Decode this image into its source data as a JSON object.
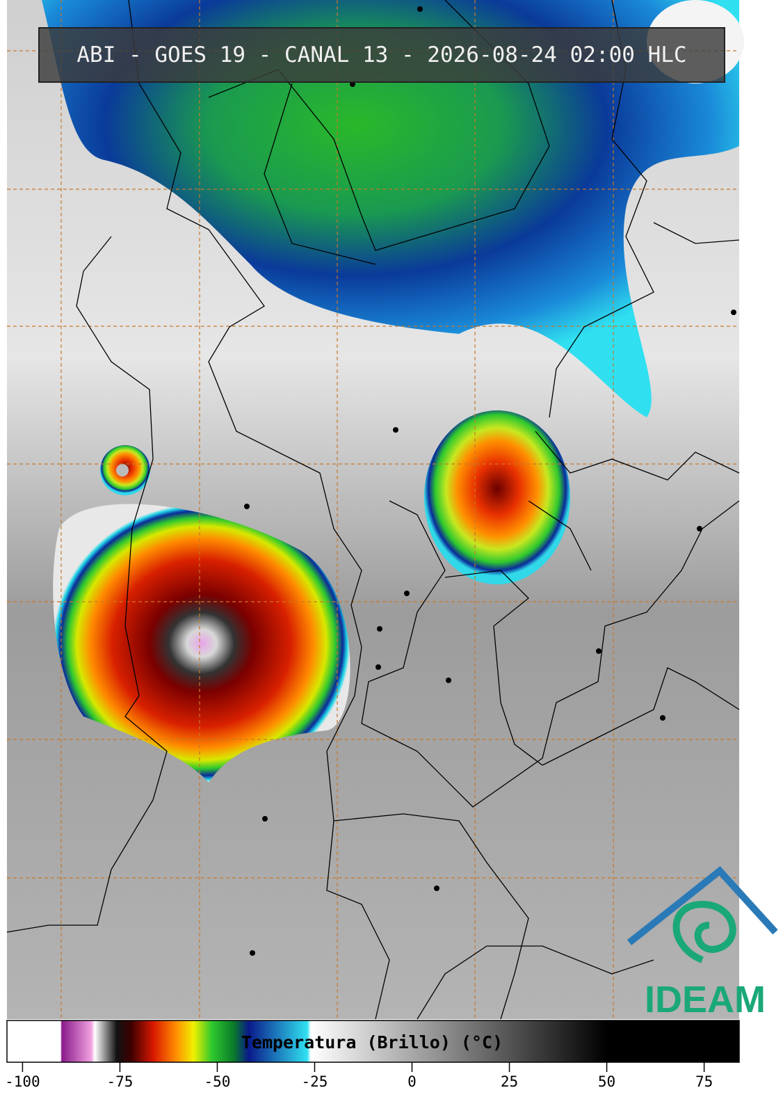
{
  "title": "ABI - GOES 19 - CANAL 13 - 2026-08-24 02:00 HLC",
  "colorbar": {
    "label": "Temperatura (Brillo) (°C)",
    "range": [
      -104,
      84
    ],
    "ticks": [
      -100,
      -75,
      -50,
      -25,
      0,
      25,
      50,
      75
    ]
  },
  "logo": "IDEAM"
}
